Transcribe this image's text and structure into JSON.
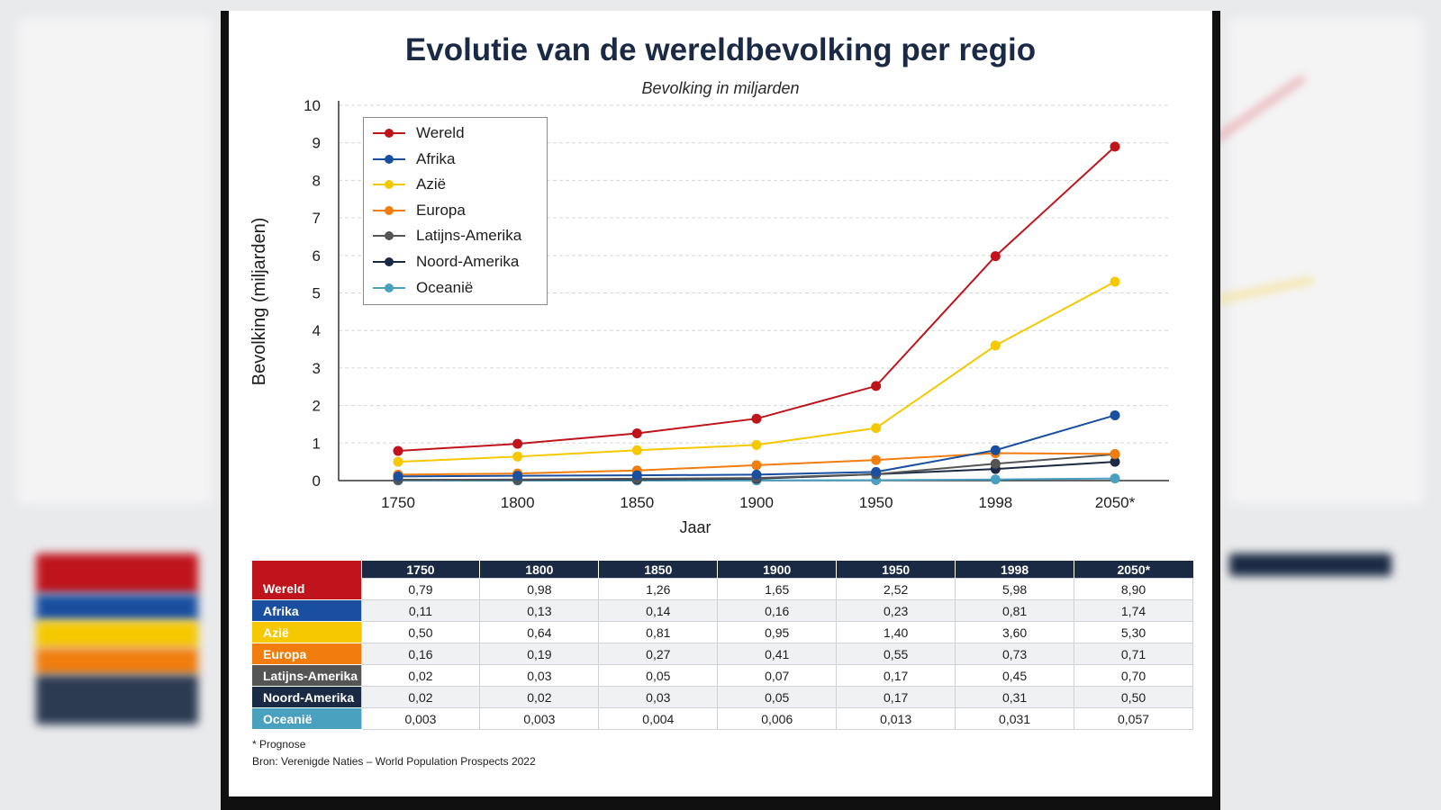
{
  "title": "Evolutie van de wereldbevolking per regio",
  "subtitle": "Bevolking in miljarden",
  "footnote": "* Prognose",
  "source": "Bron: Verenigde Naties – World Population Prospects 2022",
  "chart_data": {
    "type": "line",
    "title": "Evolutie van de wereldbevolking per regio",
    "subtitle": "Bevolking in miljarden",
    "xlabel": "Jaar",
    "ylabel": "Bevolking (miljarden)",
    "categories": [
      "1750",
      "1800",
      "1850",
      "1900",
      "1950",
      "1998",
      "2050*"
    ],
    "ylim": [
      0,
      10
    ],
    "yticks": [
      "0",
      "1",
      "2",
      "3",
      "4",
      "5",
      "6",
      "7",
      "8",
      "9",
      "10"
    ],
    "grid": true,
    "legend_position": "top-left",
    "series": [
      {
        "name": "Wereld",
        "color": "#c0141c",
        "values": [
          0.79,
          0.98,
          1.26,
          1.65,
          2.52,
          5.98,
          8.9
        ]
      },
      {
        "name": "Afrika",
        "color": "#1a4fa0",
        "values": [
          0.11,
          0.13,
          0.14,
          0.16,
          0.23,
          0.81,
          1.74
        ]
      },
      {
        "name": "Azië",
        "color": "#f5c800",
        "values": [
          0.5,
          0.64,
          0.81,
          0.95,
          1.4,
          3.6,
          5.3
        ]
      },
      {
        "name": "Europa",
        "color": "#f07d0e",
        "values": [
          0.16,
          0.19,
          0.27,
          0.41,
          0.55,
          0.73,
          0.71
        ]
      },
      {
        "name": "Latijns-Amerika",
        "color": "#555555",
        "values": [
          0.02,
          0.03,
          0.05,
          0.07,
          0.17,
          0.45,
          0.7
        ]
      },
      {
        "name": "Noord-Amerika",
        "color": "#1b2a44",
        "values": [
          0.02,
          0.02,
          0.03,
          0.05,
          0.17,
          0.31,
          0.5
        ]
      },
      {
        "name": "Oceanië",
        "color": "#4aa0bf",
        "values": [
          0.003,
          0.003,
          0.004,
          0.006,
          0.013,
          0.031,
          0.057
        ]
      }
    ]
  },
  "table": {
    "headers": [
      "1750",
      "1800",
      "1850",
      "1900",
      "1950",
      "1998",
      "2050*"
    ],
    "rows": [
      {
        "label": "Wereld",
        "color": "#c0141c",
        "cells": [
          "0,79",
          "0,98",
          "1,26",
          "1,65",
          "2,52",
          "5,98",
          "8,90"
        ]
      },
      {
        "label": "Afrika",
        "color": "#1a4fa0",
        "cells": [
          "0,11",
          "0,13",
          "0,14",
          "0,16",
          "0,23",
          "0,81",
          "1,74"
        ]
      },
      {
        "label": "Azië",
        "color": "#f5c800",
        "cells": [
          "0,50",
          "0,64",
          "0,81",
          "0,95",
          "1,40",
          "3,60",
          "5,30"
        ]
      },
      {
        "label": "Europa",
        "color": "#f07d0e",
        "cells": [
          "0,16",
          "0,19",
          "0,27",
          "0,41",
          "0,55",
          "0,73",
          "0,71"
        ]
      },
      {
        "label": "Latijns-Amerika",
        "color": "#555555",
        "cells": [
          "0,02",
          "0,03",
          "0,05",
          "0,07",
          "0,17",
          "0,45",
          "0,70"
        ]
      },
      {
        "label": "Noord-Amerika",
        "color": "#1b2a44",
        "cells": [
          "0,02",
          "0,02",
          "0,03",
          "0,05",
          "0,17",
          "0,31",
          "0,50"
        ]
      },
      {
        "label": "Oceanië",
        "color": "#4aa0bf",
        "cells": [
          "0,003",
          "0,003",
          "0,004",
          "0,006",
          "0,013",
          "0,031",
          "0,057"
        ]
      }
    ]
  }
}
